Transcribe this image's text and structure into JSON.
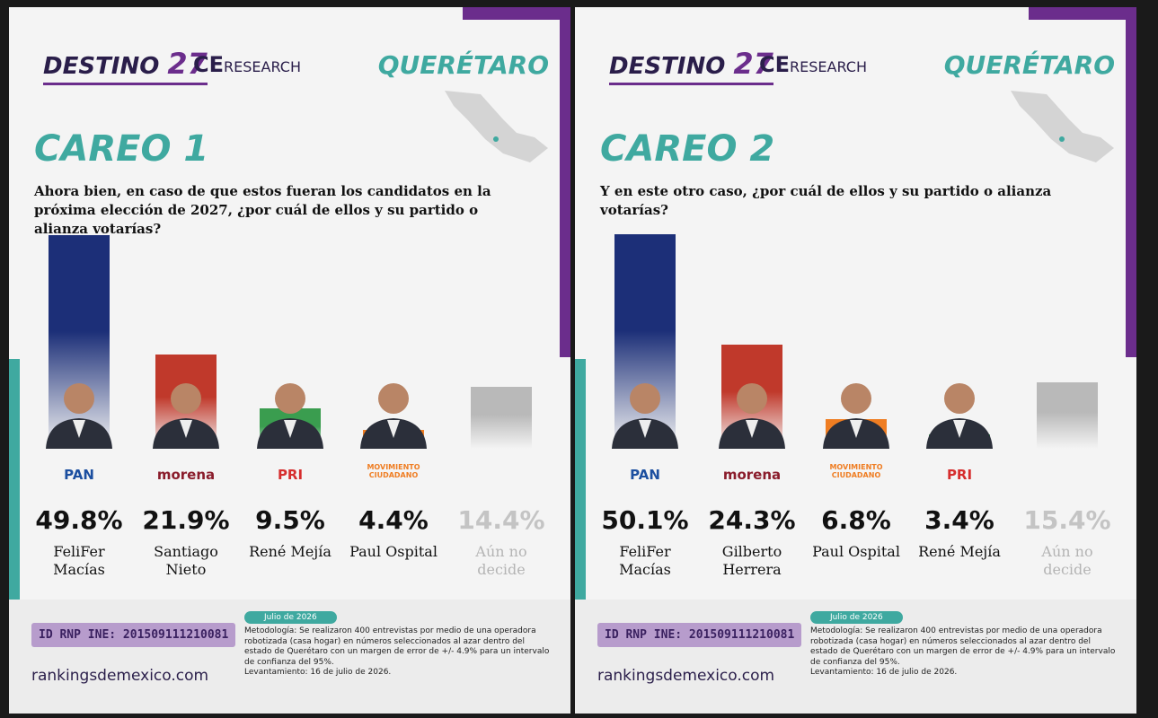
{
  "header": {
    "brand": "DESTINO",
    "brand_number": "27",
    "research_ce": "CE",
    "research": "RESEARCH",
    "state": "QUERÉTARO"
  },
  "footer": {
    "rnp": "ID RNP INE: 201509111210081",
    "website": "rankingsdemexico.com",
    "date": "Julio de 2026",
    "methodology": "Metodología: Se realizaron 400 entrevistas por medio de una operadora robotizada (casa hogar) en números seleccionados al azar dentro del estado de Querétaro con un margen de error de +/- 4.9% para un intervalo de confianza del 95%.",
    "fieldwork": "Levantamiento: 16 de julio de 2026."
  },
  "chart_data": [
    {
      "type": "bar",
      "title": "CAREO 1",
      "subtitle": "Ahora bien, en caso de que estos fueran los candidatos en la próxima elección de 2027, ¿por cuál de ellos y su partido o alianza votarías?",
      "categories": [
        "FeliFer Macías",
        "Santiago Nieto",
        "René Mejía",
        "Paul Ospital",
        "Aún no decide"
      ],
      "parties": [
        "PAN",
        "morena",
        "PRI",
        "MOVIMIENTO CIUDADANO",
        null
      ],
      "values": [
        49.8,
        21.9,
        9.5,
        4.4,
        14.4
      ],
      "value_labels": [
        "49.8%",
        "21.9%",
        "9.5%",
        "4.4%",
        "14.4%"
      ],
      "colors": [
        "#1c2f78",
        "#c0392b",
        "#3a9d4f",
        "#ef7d22",
        "#b9b9b9"
      ]
    },
    {
      "type": "bar",
      "title": "CAREO 2",
      "subtitle": "Y en este otro caso, ¿por cuál de ellos y su partido o alianza votarías?",
      "categories": [
        "FeliFer Macías",
        "Gilberto Herrera",
        "Paul Ospital",
        "René Mejía",
        "Aún no decide"
      ],
      "parties": [
        "PAN",
        "morena",
        "MOVIMIENTO CIUDADANO",
        "PRI",
        null
      ],
      "values": [
        50.1,
        24.3,
        6.8,
        3.4,
        15.4
      ],
      "value_labels": [
        "50.1%",
        "24.3%",
        "6.8%",
        "3.4%",
        "15.4%"
      ],
      "colors": [
        "#1c2f78",
        "#c0392b",
        "#ef7d22",
        "#3a9d4f",
        "#b9b9b9"
      ]
    }
  ]
}
